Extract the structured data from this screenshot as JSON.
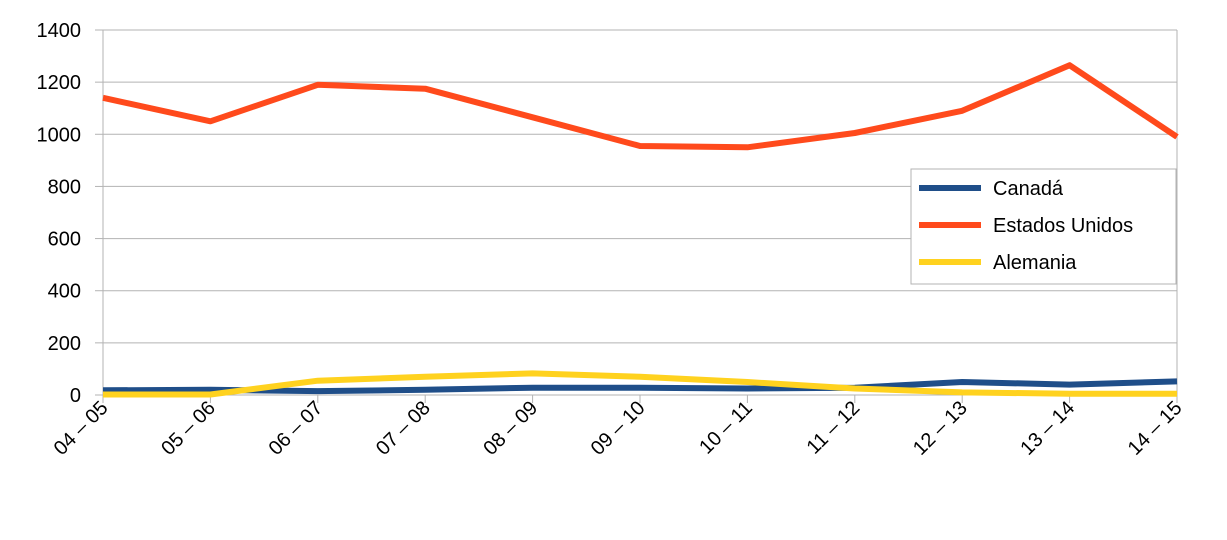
{
  "chart_data": {
    "type": "line",
    "categories": [
      "04 – 05",
      "05 – 06",
      "06 – 07",
      "07 – 08",
      "08 – 09",
      "09 – 10",
      "10 – 11",
      "11 – 12",
      "12 – 13",
      "13 – 14",
      "14 – 15"
    ],
    "series": [
      {
        "name": "Canadá",
        "color": "#1f4e89",
        "values": [
          18,
          20,
          15,
          20,
          28,
          28,
          25,
          28,
          50,
          40,
          52
        ]
      },
      {
        "name": "Estados Unidos",
        "color": "#ff4a1c",
        "values": [
          1140,
          1050,
          1190,
          1175,
          1065,
          955,
          950,
          1005,
          1090,
          1265,
          990
        ]
      },
      {
        "name": "Alemania",
        "color": "#ffd21f",
        "values": [
          2,
          2,
          55,
          70,
          83,
          70,
          50,
          25,
          10,
          5,
          5
        ]
      }
    ],
    "ylim": [
      0,
      1400
    ],
    "yticks": [
      0,
      200,
      400,
      600,
      800,
      1000,
      1200,
      1400
    ],
    "grid": true,
    "legend": "right"
  }
}
